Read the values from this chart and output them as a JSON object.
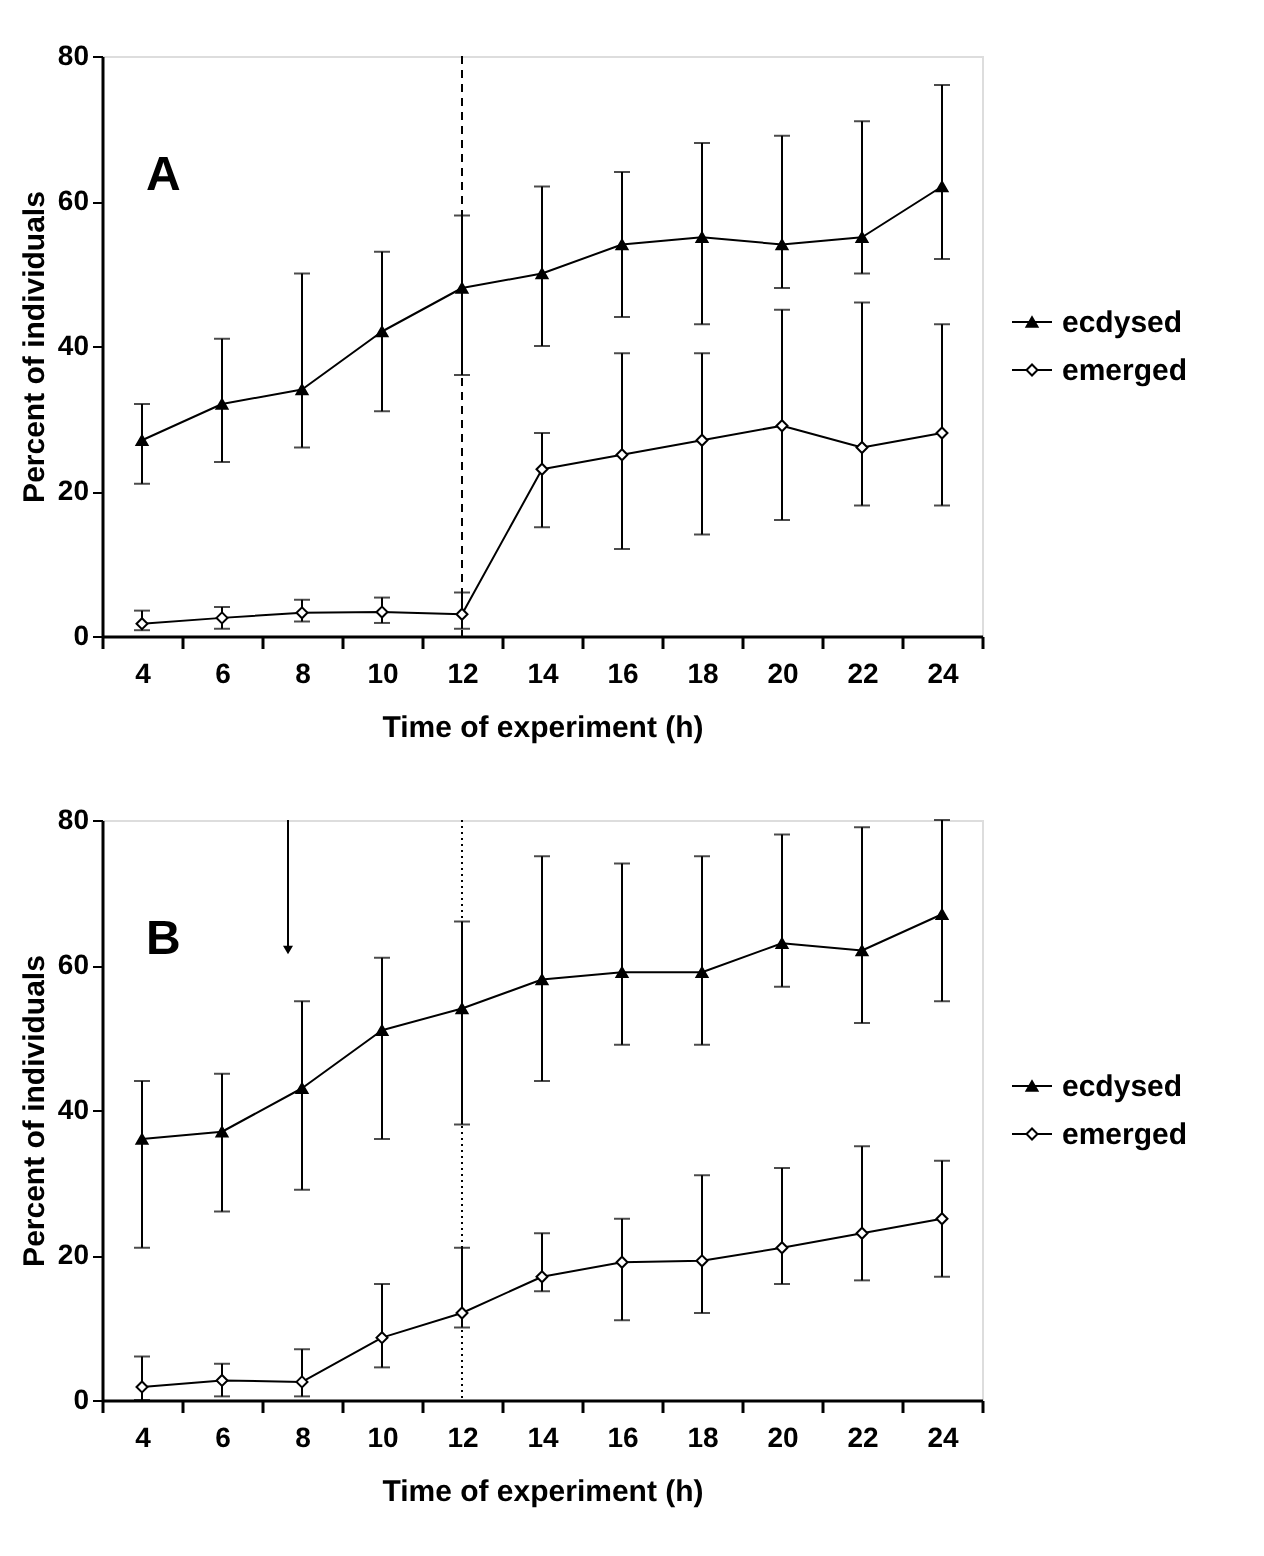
{
  "chart_data": [
    {
      "type": "line",
      "categories": [
        "4",
        "6",
        "8",
        "10",
        "12",
        "14",
        "16",
        "18",
        "20",
        "22",
        "24"
      ],
      "xlabel": "Time of experiment (h)",
      "ylabel": "Percent of individuals",
      "ylim": [
        0,
        80
      ],
      "yticks": [
        0,
        20,
        40,
        60,
        80
      ],
      "grid": false,
      "legend": "right",
      "annotations": [
        "A"
      ],
      "ref_lines": [
        {
          "axis": "x",
          "value": "12",
          "label": null,
          "color": "#000000",
          "line_style": "dashed"
        }
      ],
      "series": [
        {
          "name": "ecdysed",
          "color": "#000000",
          "marker": "triangle",
          "values": [
            27,
            32,
            34,
            42,
            48,
            50,
            54,
            55,
            54,
            55,
            62
          ],
          "errors": [
            [
              21,
              32
            ],
            [
              24,
              41
            ],
            [
              26,
              50
            ],
            [
              31,
              53
            ],
            [
              36,
              58
            ],
            [
              40,
              62
            ],
            [
              44,
              64
            ],
            [
              43,
              68
            ],
            [
              48,
              69
            ],
            [
              50,
              71
            ],
            [
              52,
              76
            ]
          ]
        },
        {
          "name": "emerged",
          "color": "#000000",
          "marker": "diamond",
          "values": [
            1.7,
            2.5,
            3.2,
            3.3,
            3,
            23,
            25,
            27,
            29,
            26,
            28
          ],
          "errors": [
            [
              0.8,
              3.5
            ],
            [
              1,
              4
            ],
            [
              2,
              5
            ],
            [
              1.8,
              5.3
            ],
            [
              1,
              6
            ],
            [
              15,
              28
            ],
            [
              12,
              39
            ],
            [
              14,
              39
            ],
            [
              16,
              45
            ],
            [
              18,
              46
            ],
            [
              18,
              43
            ]
          ]
        }
      ]
    },
    {
      "type": "line",
      "categories": [
        "4",
        "6",
        "8",
        "10",
        "12",
        "14",
        "16",
        "18",
        "20",
        "22",
        "24"
      ],
      "xlabel": "Time of experiment (h)",
      "ylabel": "Percent of individuals",
      "ylim": [
        0,
        80
      ],
      "yticks": [
        0,
        20,
        40,
        60,
        80
      ],
      "grid": false,
      "legend": "right",
      "annotations": [
        "B"
      ],
      "ref_lines": [
        {
          "axis": "x",
          "value": "12",
          "label": null,
          "color": "#000000",
          "line_style": "dotted"
        }
      ],
      "series": [
        {
          "name": "ecdysed",
          "color": "#000000",
          "marker": "triangle",
          "values": [
            36,
            37,
            43,
            51,
            54,
            58,
            59,
            59,
            63,
            62,
            67
          ],
          "errors": [
            [
              21,
              44
            ],
            [
              26,
              45
            ],
            [
              29,
              55
            ],
            [
              36,
              61
            ],
            [
              38,
              66
            ],
            [
              44,
              75
            ],
            [
              49,
              74
            ],
            [
              49,
              75
            ],
            [
              57,
              78
            ],
            [
              52,
              79
            ],
            [
              55,
              80
            ]
          ]
        },
        {
          "name": "emerged",
          "color": "#000000",
          "marker": "diamond",
          "values": [
            1.8,
            2.7,
            2.5,
            8.6,
            12,
            17,
            19,
            19.2,
            21,
            23,
            25
          ],
          "errors": [
            [
              0,
              6
            ],
            [
              0.5,
              5
            ],
            [
              0.5,
              7
            ],
            [
              4.5,
              16
            ],
            [
              10,
              21
            ],
            [
              15,
              23
            ],
            [
              11,
              25
            ],
            [
              12,
              31
            ],
            [
              16,
              32
            ],
            [
              16.5,
              35
            ],
            [
              17,
              33
            ]
          ]
        }
      ]
    }
  ]
}
